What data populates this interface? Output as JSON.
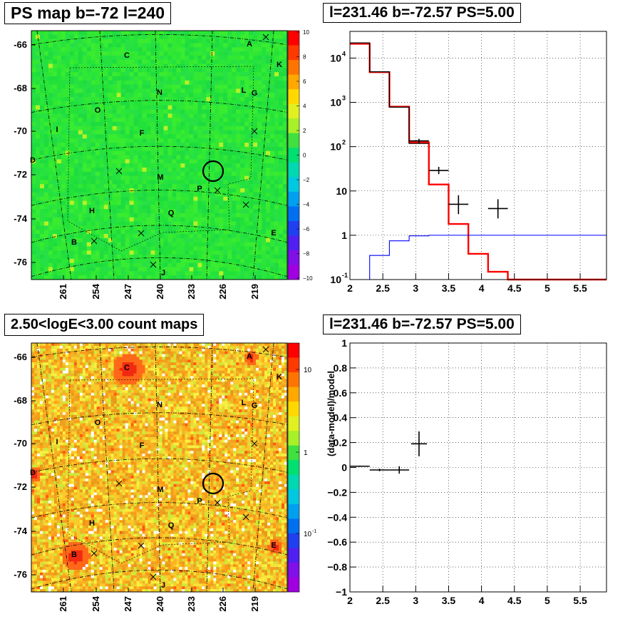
{
  "panels": {
    "ps_map": {
      "title": "PS map b=-72 l=240"
    },
    "spectrum": {
      "title": "l=231.46 b=-72.57 PS=5.00"
    },
    "count_map": {
      "title": "2.50<logE<3.00 count maps"
    },
    "residual": {
      "title": "l=231.46 b=-72.57 PS=5.00"
    }
  },
  "colors": {
    "map_green": "#22e23a",
    "map_orange": "#f0b020",
    "data_red": "#ff0000",
    "data_black": "#000000",
    "model_blue": "#0000ff"
  },
  "chart_data": [
    {
      "id": "ps_map",
      "type": "heatmap",
      "title": "PS map b=-72 l=240",
      "x_ticks": [
        "261",
        "254",
        "247",
        "240",
        "233",
        "226",
        "219"
      ],
      "y_ticks": [
        "-66",
        "-68",
        "-70",
        "-72",
        "-74",
        "-76"
      ],
      "colorbar": {
        "ticks": [
          "10",
          "8",
          "6",
          "4",
          "2",
          "0",
          "−2",
          "−4",
          "−6",
          "−8",
          "−10"
        ],
        "range": [
          -10,
          10
        ]
      },
      "sources": [
        "A",
        "K",
        "C",
        "N",
        "L",
        "G",
        "O",
        "I",
        "F",
        "D",
        "M",
        "P",
        "H",
        "Q",
        "E",
        "B",
        "J"
      ]
    },
    {
      "id": "spectrum",
      "type": "line",
      "title": "l=231.46 b=-72.57 PS=5.00",
      "x_ticks": [
        "2",
        "2.5",
        "3",
        "3.5",
        "4",
        "4.5",
        "5",
        "5.5"
      ],
      "y_ticks": [
        {
          "label": "10",
          "exp": "-1",
          "value": 0.1
        },
        {
          "label": "1",
          "exp": "",
          "value": 1
        },
        {
          "label": "10",
          "exp": "",
          "value": 10
        },
        {
          "label": "10",
          "exp": "2",
          "value": 100
        },
        {
          "label": "10",
          "exp": "3",
          "value": 1000
        },
        {
          "label": "10",
          "exp": "4",
          "value": 10000
        }
      ],
      "xlim": [
        2,
        5.9
      ],
      "ylim": [
        0.1,
        40000
      ],
      "log_y": true,
      "grid": true,
      "series": [
        {
          "style": "step",
          "color": "#ff0000",
          "edges": [
            2.0,
            2.3,
            2.6,
            2.9,
            3.2,
            3.5,
            3.8,
            4.1,
            4.4,
            5.9
          ],
          "values": [
            21000,
            4800,
            800,
            125,
            14,
            1.8,
            0.38,
            0.15,
            0.1
          ]
        },
        {
          "style": "step",
          "color": "#000000",
          "edges": [
            2.0,
            2.3,
            2.6,
            2.9,
            3.2
          ],
          "values": [
            22000,
            4900,
            780,
            118
          ]
        },
        {
          "style": "step",
          "color": "#0000ff",
          "edges": [
            2.0,
            2.3,
            2.6,
            2.9,
            3.2,
            5.9
          ],
          "values": [
            0.1,
            0.35,
            0.75,
            0.97,
            1.0
          ]
        },
        {
          "style": "points",
          "color": "#000000",
          "points": [
            {
              "x": 3.05,
              "xerr": 0.15,
              "y": 135,
              "ylo": 120,
              "yhi": 150
            },
            {
              "x": 3.35,
              "xerr": 0.15,
              "y": 29,
              "ylo": 24,
              "yhi": 35
            },
            {
              "x": 3.65,
              "xerr": 0.15,
              "y": 5,
              "ylo": 3,
              "yhi": 8
            },
            {
              "x": 4.25,
              "xerr": 0.15,
              "y": 4,
              "ylo": 2.4,
              "yhi": 6.5
            }
          ]
        }
      ]
    },
    {
      "id": "count_map",
      "type": "heatmap",
      "title": "2.50<logE<3.00 count maps",
      "x_ticks": [
        "261",
        "254",
        "247",
        "240",
        "233",
        "226",
        "219"
      ],
      "y_ticks": [
        "-66",
        "-68",
        "-70",
        "-72",
        "-74",
        "-76"
      ],
      "colorbar": {
        "ticks": [
          "10",
          "1",
          "10"
        ],
        "exp": "-1",
        "log": true
      },
      "sources": [
        "A",
        "K",
        "C",
        "N",
        "L",
        "G",
        "O",
        "I",
        "F",
        "D",
        "M",
        "P",
        "H",
        "Q",
        "E",
        "B",
        "J"
      ]
    },
    {
      "id": "residual",
      "type": "scatter",
      "title": "l=231.46 b=-72.57 PS=5.00",
      "ylabel": "(data-model)/model",
      "x_ticks": [
        "2",
        "2.5",
        "3",
        "3.5",
        "4",
        "4.5",
        "5",
        "5.5"
      ],
      "y_ticks": [
        "−1",
        "−0.8",
        "−0.6",
        "−0.4",
        "−0.2",
        "0",
        "0.2",
        "0.4",
        "0.6",
        "0.8",
        "1"
      ],
      "xlim": [
        2,
        5.9
      ],
      "ylim": [
        -1,
        1
      ],
      "grid": true,
      "points": [
        {
          "x": 2.15,
          "xerr": 0.15,
          "y": 0.01,
          "yerr": 0.005
        },
        {
          "x": 2.45,
          "xerr": 0.15,
          "y": -0.02,
          "yerr": 0.01
        },
        {
          "x": 2.75,
          "xerr": 0.15,
          "y": -0.02,
          "yerr": 0.03
        },
        {
          "x": 3.05,
          "xerr": 0.12,
          "y": 0.19,
          "yerr": 0.1
        }
      ]
    }
  ]
}
